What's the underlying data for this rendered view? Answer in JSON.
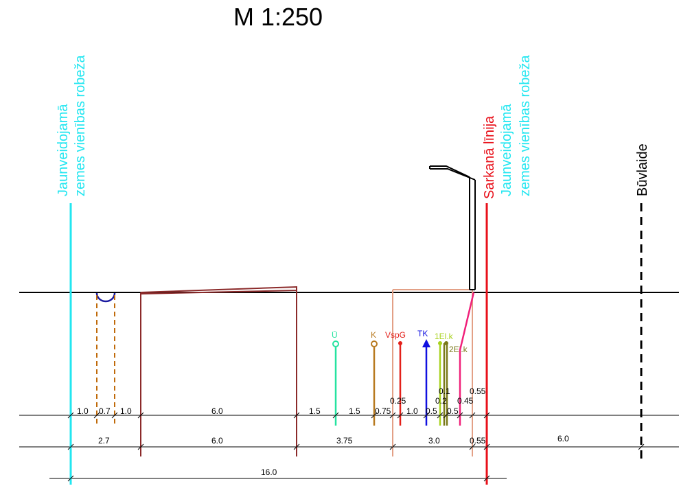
{
  "title": "M 1:250",
  "boundary_label_line1": "Jaunveidojamā",
  "boundary_label_line2": "zemes vienības robeža",
  "red_line_label": "Sarkanā līnija",
  "building_line_label": "Būvlaide",
  "utilities": {
    "u": "Ū",
    "k": "K",
    "vspg": "VspG",
    "tk": "TK",
    "el1": "1El.k",
    "el2": "2El.k"
  },
  "dim_row1": [
    "1.0",
    "0.7",
    "1.0",
    "6.0",
    "1.5",
    "1.5",
    "0.75",
    "1.0",
    "0.5",
    "0.5"
  ],
  "dim_row1_upper": [
    "0.25",
    "0.2",
    "0.45",
    "0.1",
    "0.55"
  ],
  "dim_row2": [
    "2.7",
    "6.0",
    "3.75",
    "3.0",
    "0.55",
    "6.0"
  ],
  "dim_row3": [
    "16.0"
  ],
  "colors": {
    "boundary": "#22e6f0",
    "red_line": "#e8101a",
    "building_line": "#000000",
    "road_edge": "#8b2a2a",
    "sidewalk": "#e3a086",
    "drain": "#c06a0a",
    "u": "#25e3a0",
    "k": "#b87a20",
    "vspg": "#e3201a",
    "tk": "#1010e0",
    "el1": "#a8d21e",
    "el2": "#7a7a1a",
    "el_pink": "#f0207a",
    "pipe": "#1a1aa0"
  }
}
